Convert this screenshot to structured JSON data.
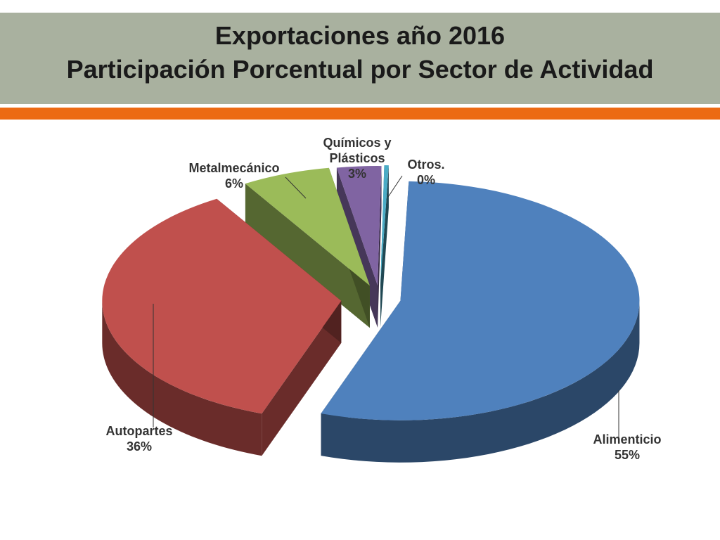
{
  "title": {
    "line1": "Exportaciones año 2016",
    "line2": "Participación Porcentual por Sector de Actividad"
  },
  "colors": {
    "accent_bar": "#ec6a13",
    "header_bg": "#a9b19f"
  },
  "chart_data": {
    "type": "pie",
    "style": "3d-exploded",
    "slices": [
      {
        "label": "Alimenticio",
        "value_label": "55%",
        "value": 55,
        "color": "#4f81bd"
      },
      {
        "label": "Autopartes",
        "value_label": "36%",
        "value": 36,
        "color": "#c0504d"
      },
      {
        "label": "Metalmecánico",
        "value_label": "6%",
        "value": 6,
        "color": "#9bbb59"
      },
      {
        "label": "Químicos y Plásticos",
        "value_label": "3%",
        "value": 3,
        "color": "#8064a2"
      },
      {
        "label": "Otros.",
        "value_label": "0%",
        "value": 0.3,
        "color": "#4bacc6"
      }
    ]
  }
}
